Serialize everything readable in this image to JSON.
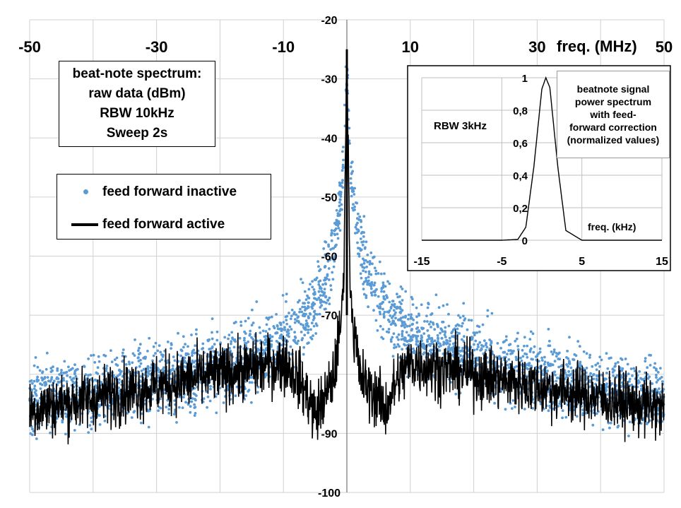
{
  "chart_data": [
    {
      "type": "scatter",
      "title": "",
      "xlabel": "freq. (MHz)",
      "ylabel": "",
      "xlim": [
        -50,
        50
      ],
      "ylim": [
        -100,
        -20
      ],
      "x_ticks": [
        "-50",
        "-30",
        "-10",
        "10",
        "30",
        "50"
      ],
      "y_ticks": [
        "-20",
        "-30",
        "-40",
        "-50",
        "-60",
        "-70",
        "-90",
        "-100"
      ],
      "grid": true,
      "info_box": [
        "beat-note spectrum:",
        "raw data  (dBm)",
        "RBW 10kHz",
        "Sweep 2s"
      ],
      "legend": {
        "placement": "upper-left"
      },
      "series": [
        {
          "name": "feed forward inactive",
          "style": "dots",
          "color": "#5b9bd5",
          "profile_x": [
            -50,
            -40,
            -30,
            -20,
            -15,
            -10,
            -7,
            -5,
            -3,
            -2,
            -1,
            -0.5,
            0,
            0.5,
            1,
            2,
            3,
            5,
            7,
            10,
            15,
            20,
            30,
            40,
            50
          ],
          "profile_y": [
            -84,
            -83,
            -81,
            -79,
            -77,
            -74,
            -71,
            -68,
            -64,
            -59,
            -50,
            -44,
            -29,
            -44,
            -50,
            -57,
            -62,
            -67,
            -70,
            -73,
            -75,
            -77,
            -80,
            -82,
            -84
          ]
        },
        {
          "name": "feed forward active",
          "style": "line",
          "color": "#000000",
          "profile_x": [
            -50,
            -40,
            -30,
            -20,
            -15,
            -10,
            -8,
            -6,
            -5,
            -3,
            -2,
            -1,
            -0.5,
            0,
            0.5,
            1,
            2,
            3,
            5,
            6,
            8,
            10,
            15,
            20,
            30,
            40,
            50
          ],
          "profile_y": [
            -86,
            -84,
            -82,
            -80,
            -79,
            -78,
            -80,
            -84,
            -87,
            -83,
            -80,
            -72,
            -64,
            -25,
            -64,
            -72,
            -80,
            -82,
            -84,
            -86,
            -81,
            -78,
            -79,
            -80,
            -82,
            -84,
            -86
          ]
        }
      ]
    },
    {
      "type": "line",
      "title": "",
      "xlabel": "freq. (kHz)",
      "ylabel": "",
      "xlim": [
        -15,
        15
      ],
      "ylim": [
        0,
        1
      ],
      "x_ticks": [
        "-15",
        "-5",
        "5",
        "15"
      ],
      "y_ticks": [
        "0",
        "0,2",
        "0,4",
        "0,6",
        "0,8",
        "1"
      ],
      "grid": true,
      "annotation": "RBW 3kHz",
      "note": [
        "beatnote signal",
        "power spectrum",
        "with feed-",
        "forward correction",
        "(normalized values)"
      ],
      "series": [
        {
          "x": [
            -15,
            -10,
            -5,
            -3,
            -2,
            -1,
            0,
            0.5,
            1,
            2,
            3,
            5,
            10,
            15
          ],
          "values": [
            0,
            0,
            0,
            0.005,
            0.08,
            0.45,
            0.93,
            1.0,
            0.94,
            0.45,
            0.06,
            0,
            0,
            0
          ],
          "color": "#000000"
        }
      ]
    }
  ]
}
